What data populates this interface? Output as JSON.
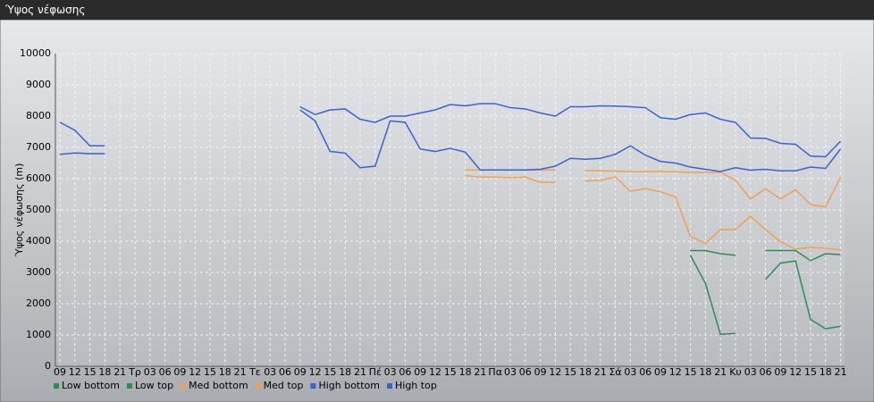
{
  "window_title": "Ύψος νέφωσης",
  "chart_data": {
    "type": "line",
    "y_label": "Ύψος νέφωσης (m)",
    "categories": [
      "09",
      "12",
      "15",
      "18",
      "21",
      "Τρ",
      "03",
      "06",
      "09",
      "12",
      "15",
      "18",
      "21",
      "Τε",
      "03",
      "06",
      "09",
      "12",
      "15",
      "18",
      "21",
      "Πέ",
      "03",
      "06",
      "09",
      "12",
      "15",
      "18",
      "21",
      "Πα",
      "03",
      "06",
      "09",
      "12",
      "15",
      "18",
      "21",
      "Σά",
      "03",
      "06",
      "09",
      "12",
      "15",
      "18",
      "21",
      "Κυ",
      "03",
      "06",
      "09",
      "12",
      "15",
      "18",
      "21"
    ],
    "ylim": [
      0,
      10000
    ],
    "yticks": [
      0,
      1000,
      2000,
      3000,
      4000,
      5000,
      6000,
      7000,
      8000,
      9000,
      10000
    ],
    "grid": true,
    "legend": "bottom",
    "series": [
      {
        "name": "Low bottom",
        "color": "#2e8b57",
        "values": [
          null,
          null,
          null,
          null,
          null,
          null,
          null,
          null,
          null,
          null,
          null,
          null,
          null,
          null,
          null,
          null,
          null,
          null,
          null,
          null,
          null,
          null,
          null,
          null,
          null,
          null,
          null,
          null,
          null,
          null,
          null,
          null,
          null,
          null,
          null,
          null,
          null,
          null,
          null,
          null,
          null,
          null,
          3550,
          2650,
          1020,
          1050,
          null,
          2780,
          3300,
          3370,
          1500,
          1200,
          1280
        ]
      },
      {
        "name": "Low top",
        "color": "#2e8b57",
        "values": [
          null,
          null,
          null,
          null,
          null,
          null,
          null,
          null,
          null,
          null,
          null,
          null,
          null,
          null,
          null,
          null,
          null,
          null,
          null,
          null,
          null,
          null,
          null,
          null,
          null,
          null,
          null,
          null,
          null,
          null,
          null,
          null,
          null,
          null,
          null,
          null,
          null,
          null,
          null,
          null,
          null,
          null,
          3700,
          3700,
          3600,
          3550,
          null,
          3700,
          3700,
          3700,
          3380,
          3600,
          3570
        ]
      },
      {
        "name": "Med bottom",
        "color": "#f0a050",
        "values": [
          null,
          null,
          null,
          null,
          null,
          null,
          null,
          null,
          null,
          null,
          null,
          null,
          null,
          null,
          null,
          null,
          null,
          null,
          null,
          null,
          null,
          null,
          null,
          null,
          null,
          null,
          null,
          6100,
          6050,
          6050,
          6030,
          6050,
          5880,
          5880,
          null,
          5930,
          5950,
          6050,
          5600,
          5680,
          5580,
          5420,
          4150,
          3930,
          4370,
          4380,
          4800,
          4370,
          3980,
          3750,
          3800,
          3780,
          3720
        ]
      },
      {
        "name": "Med top",
        "color": "#f0a050",
        "values": [
          null,
          null,
          null,
          null,
          null,
          null,
          null,
          null,
          null,
          null,
          null,
          null,
          null,
          null,
          null,
          null,
          null,
          null,
          null,
          null,
          null,
          null,
          null,
          null,
          null,
          null,
          null,
          6280,
          6280,
          6280,
          6280,
          6280,
          6280,
          6280,
          null,
          6260,
          6250,
          6240,
          6220,
          6230,
          6230,
          6220,
          6200,
          6200,
          6200,
          5950,
          5350,
          5680,
          5350,
          5650,
          5170,
          5100,
          6050
        ]
      },
      {
        "name": "High bottom",
        "color": "#3a62d0",
        "values": [
          6780,
          6820,
          6800,
          6800,
          null,
          null,
          null,
          null,
          null,
          null,
          null,
          null,
          null,
          null,
          null,
          null,
          8200,
          7850,
          6870,
          6820,
          6350,
          6400,
          7850,
          7800,
          6950,
          6870,
          6970,
          6850,
          6280,
          6280,
          6280,
          6280,
          6300,
          6400,
          6650,
          6620,
          6650,
          6780,
          7050,
          6750,
          6550,
          6500,
          6370,
          6300,
          6230,
          6350,
          6270,
          6300,
          6250,
          6250,
          6370,
          6330,
          6950
        ]
      },
      {
        "name": "High top",
        "color": "#3a62d0",
        "values": [
          7800,
          7550,
          7050,
          7050,
          null,
          null,
          null,
          null,
          null,
          null,
          null,
          null,
          null,
          null,
          null,
          null,
          8300,
          8050,
          8200,
          8230,
          7900,
          7800,
          8000,
          8000,
          8100,
          8200,
          8370,
          8330,
          8400,
          8400,
          8270,
          8230,
          8100,
          8000,
          8300,
          8300,
          8330,
          8320,
          8300,
          8270,
          7950,
          7900,
          8050,
          8100,
          7900,
          7800,
          7300,
          7290,
          7130,
          7100,
          6720,
          6700,
          7200
        ]
      }
    ]
  }
}
